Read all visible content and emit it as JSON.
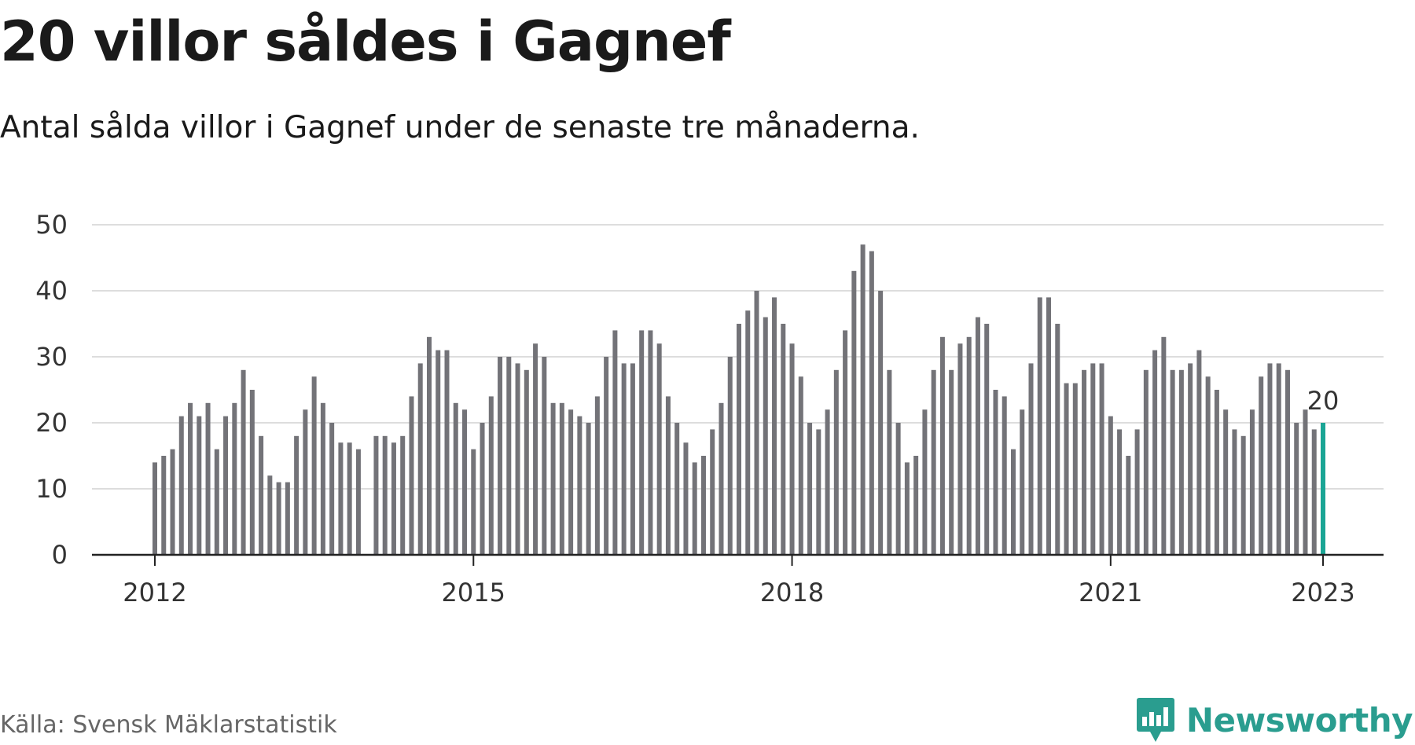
{
  "header": {
    "title": "20 villor såldes i Gagnef",
    "subtitle": "Antal sålda villor i Gagnef under de senaste tre månaderna."
  },
  "footer": {
    "source": "Källa: Svensk Mäklarstatistik",
    "brand": "Newsworthy"
  },
  "colors": {
    "bar": "#737378",
    "highlight": "#1aa595",
    "grid": "#dddddd",
    "axis": "#222222",
    "brand": "#2a9d8f"
  },
  "chart_data": {
    "type": "bar",
    "title": "20 villor såldes i Gagnef",
    "subtitle": "Antal sålda villor i Gagnef under de senaste tre månaderna.",
    "xlabel": "",
    "ylabel": "",
    "ylim": [
      0,
      50
    ],
    "yticks": [
      0,
      10,
      20,
      30,
      40,
      50
    ],
    "xticks": [
      {
        "label": "2012",
        "month": "2012-01"
      },
      {
        "label": "2015",
        "month": "2015-01"
      },
      {
        "label": "2018",
        "month": "2018-01"
      },
      {
        "label": "2021",
        "month": "2021-01"
      },
      {
        "label": "2023",
        "month": "2023-01"
      }
    ],
    "grid": true,
    "series": [
      {
        "name": "",
        "months": [
          "2012-01",
          "2012-02",
          "2012-03",
          "2012-04",
          "2012-05",
          "2012-06",
          "2012-07",
          "2012-08",
          "2012-09",
          "2012-10",
          "2012-11",
          "2012-12",
          "2013-01",
          "2013-02",
          "2013-03",
          "2013-04",
          "2013-05",
          "2013-06",
          "2013-07",
          "2013-08",
          "2013-09",
          "2013-10",
          "2013-11",
          "2013-12",
          "2014-01",
          "2014-02",
          "2014-03",
          "2014-04",
          "2014-05",
          "2014-06",
          "2014-07",
          "2014-08",
          "2014-09",
          "2014-10",
          "2014-11",
          "2014-12",
          "2015-01",
          "2015-02",
          "2015-03",
          "2015-04",
          "2015-05",
          "2015-06",
          "2015-07",
          "2015-08",
          "2015-09",
          "2015-10",
          "2015-11",
          "2015-12",
          "2016-01",
          "2016-02",
          "2016-03",
          "2016-04",
          "2016-05",
          "2016-06",
          "2016-07",
          "2016-08",
          "2016-09",
          "2016-10",
          "2016-11",
          "2016-12",
          "2017-01",
          "2017-02",
          "2017-03",
          "2017-04",
          "2017-05",
          "2017-06",
          "2017-07",
          "2017-08",
          "2017-09",
          "2017-10",
          "2017-11",
          "2017-12",
          "2018-01",
          "2018-02",
          "2018-03",
          "2018-04",
          "2018-05",
          "2018-06",
          "2018-07",
          "2018-08",
          "2018-09",
          "2018-10",
          "2018-11",
          "2018-12",
          "2019-01",
          "2019-02",
          "2019-03",
          "2019-04",
          "2019-05",
          "2019-06",
          "2019-07",
          "2019-08",
          "2019-09",
          "2019-10",
          "2019-11",
          "2019-12",
          "2020-01",
          "2020-02",
          "2020-03",
          "2020-04",
          "2020-05",
          "2020-06",
          "2020-07",
          "2020-08",
          "2020-09",
          "2020-10",
          "2020-11",
          "2020-12",
          "2021-01",
          "2021-02",
          "2021-03",
          "2021-04",
          "2021-05",
          "2021-06",
          "2021-07",
          "2021-08",
          "2021-09",
          "2021-10",
          "2021-11",
          "2021-12",
          "2022-01",
          "2022-02",
          "2022-03",
          "2022-04",
          "2022-05",
          "2022-06",
          "2022-07",
          "2022-08",
          "2022-09",
          "2022-10",
          "2022-11",
          "2022-12",
          "2023-01"
        ],
        "values": [
          14,
          15,
          16,
          21,
          23,
          21,
          23,
          16,
          21,
          23,
          28,
          25,
          18,
          12,
          11,
          11,
          18,
          22,
          27,
          23,
          20,
          17,
          17,
          16,
          null,
          18,
          18,
          17,
          18,
          24,
          29,
          33,
          31,
          31,
          23,
          22,
          16,
          20,
          24,
          30,
          30,
          29,
          28,
          32,
          30,
          23,
          23,
          22,
          21,
          20,
          24,
          30,
          34,
          29,
          29,
          34,
          34,
          32,
          24,
          20,
          17,
          14,
          15,
          19,
          23,
          30,
          35,
          37,
          40,
          36,
          39,
          35,
          32,
          27,
          20,
          19,
          22,
          28,
          34,
          43,
          47,
          46,
          40,
          28,
          20,
          14,
          15,
          22,
          28,
          33,
          28,
          32,
          33,
          36,
          35,
          25,
          24,
          16,
          22,
          29,
          39,
          39,
          35,
          26,
          26,
          28,
          29,
          29,
          21,
          19,
          15,
          19,
          28,
          31,
          33,
          28,
          28,
          29,
          31,
          27,
          25,
          22,
          19,
          18,
          22,
          27,
          29,
          29,
          28,
          20,
          22,
          19,
          20
        ]
      }
    ],
    "highlight": {
      "month": "2023-01",
      "value": 20,
      "label": "20"
    }
  }
}
